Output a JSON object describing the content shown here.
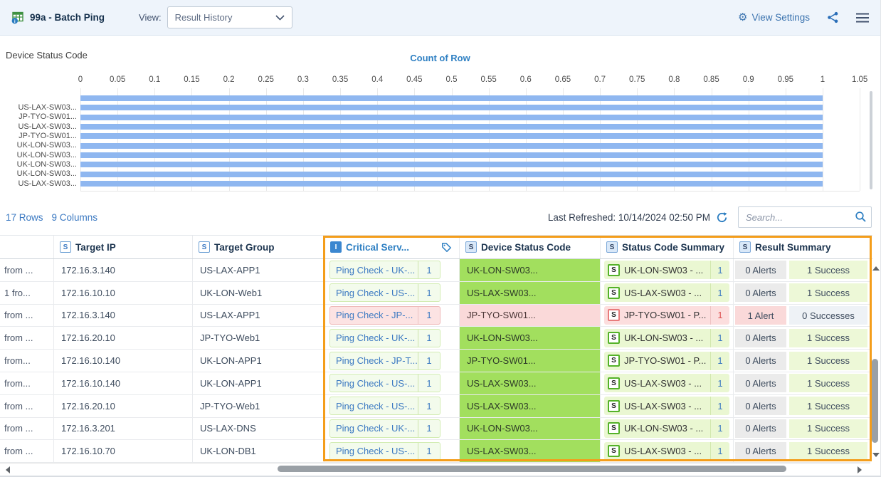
{
  "topbar": {
    "title": "99a - Batch Ping",
    "view_label": "View:",
    "view_value": "Result History",
    "view_settings_label": "View Settings"
  },
  "chart_data": {
    "type": "bar",
    "orientation": "horizontal",
    "title": "Device Status Code",
    "series_label": "Count of Row",
    "xlabel": "Count of Row",
    "xlim": [
      0,
      1.05
    ],
    "x_ticks": [
      "0",
      "0.05",
      "0.1",
      "0.15",
      "0.2",
      "0.25",
      "0.3",
      "0.35",
      "0.4",
      "0.45",
      "0.5",
      "0.55",
      "0.6",
      "0.65",
      "0.7",
      "0.75",
      "0.8",
      "0.85",
      "0.9",
      "0.95",
      "1",
      "1.05"
    ],
    "categories": [
      "",
      "US-LAX-SW03...",
      "JP-TYO-SW01...",
      "US-LAX-SW03...",
      "JP-TYO-SW01...",
      "UK-LON-SW03...",
      "UK-LON-SW03...",
      "UK-LON-SW03...",
      "UK-LON-SW03...",
      "US-LAX-SW03..."
    ],
    "values": [
      1,
      1,
      1,
      1,
      1,
      1,
      1,
      1,
      1,
      1
    ],
    "bar_color": "#8fb7f0",
    "grid": true,
    "note_total_rows": 17
  },
  "meta": {
    "rows_info": "17 Rows",
    "cols_info": "9 Columns",
    "last_refreshed": "Last Refreshed: 10/14/2024 02:50 PM",
    "search_placeholder": "Search..."
  },
  "table": {
    "headers": [
      {
        "label": "",
        "icon": ""
      },
      {
        "label": "Target IP",
        "icon": "S"
      },
      {
        "label": "Target Group",
        "icon": "S"
      },
      {
        "label": "Critical Serv...",
        "icon": "I",
        "tag": true
      },
      {
        "label": "Device Status Code",
        "icon": "S2"
      },
      {
        "label": "Status Code Summary",
        "icon": "S2"
      },
      {
        "label": "Result Summary",
        "icon": "S2"
      }
    ],
    "rows": [
      {
        "first": "from ...",
        "ip": "172.16.3.140",
        "group": "US-LAX-APP1",
        "critical": "Ping Check - UK-...",
        "critical_count": "1",
        "device": "UK-LON-SW03...",
        "summary": "UK-LON-SW03 - ...",
        "summary_count": "1",
        "alerts": "0 Alerts",
        "successes": "1 Success",
        "state": "ok"
      },
      {
        "first": "1 fro...",
        "ip": "172.16.10.10",
        "group": "UK-LON-Web1",
        "critical": "Ping Check - US-...",
        "critical_count": "1",
        "device": "US-LAX-SW03...",
        "summary": "US-LAX-SW03 - ...",
        "summary_count": "1",
        "alerts": "0 Alerts",
        "successes": "1 Success",
        "state": "ok"
      },
      {
        "first": "from ...",
        "ip": "172.16.3.140",
        "group": "US-LAX-APP1",
        "critical": "Ping Check - JP-...",
        "critical_count": "1",
        "device": "JP-TYO-SW01...",
        "summary": "JP-TYO-SW01 - P...",
        "summary_count": "1",
        "alerts": "1 Alert",
        "successes": "0 Successes",
        "state": "alert"
      },
      {
        "first": "from ...",
        "ip": "172.16.20.10",
        "group": "JP-TYO-Web1",
        "critical": "Ping Check - UK-...",
        "critical_count": "1",
        "device": "UK-LON-SW03...",
        "summary": "UK-LON-SW03 - ...",
        "summary_count": "1",
        "alerts": "0 Alerts",
        "successes": "1 Success",
        "state": "ok"
      },
      {
        "first": "from...",
        "ip": "172.16.10.140",
        "group": "UK-LON-APP1",
        "critical": "Ping Check - JP-T...",
        "critical_count": "1",
        "device": "JP-TYO-SW01...",
        "summary": "JP-TYO-SW01 - P...",
        "summary_count": "1",
        "alerts": "0 Alerts",
        "successes": "1 Success",
        "state": "ok"
      },
      {
        "first": "from...",
        "ip": "172.16.10.140",
        "group": "UK-LON-APP1",
        "critical": "Ping Check - US-...",
        "critical_count": "1",
        "device": "US-LAX-SW03...",
        "summary": "US-LAX-SW03 - ...",
        "summary_count": "1",
        "alerts": "0 Alerts",
        "successes": "1 Success",
        "state": "ok"
      },
      {
        "first": "from ...",
        "ip": "172.16.20.10",
        "group": "JP-TYO-Web1",
        "critical": "Ping Check - US-...",
        "critical_count": "1",
        "device": "US-LAX-SW03...",
        "summary": "US-LAX-SW03 - ...",
        "summary_count": "1",
        "alerts": "0 Alerts",
        "successes": "1 Success",
        "state": "ok"
      },
      {
        "first": "from ...",
        "ip": "172.16.3.201",
        "group": "US-LAX-DNS",
        "critical": "Ping Check - UK-...",
        "critical_count": "1",
        "device": "UK-LON-SW03...",
        "summary": "UK-LON-SW03 - ...",
        "summary_count": "1",
        "alerts": "0 Alerts",
        "successes": "1 Success",
        "state": "ok"
      },
      {
        "first": "from ...",
        "ip": "172.16.10.70",
        "group": "UK-LON-DB1",
        "critical": "Ping Check - US-...",
        "critical_count": "1",
        "device": "US-LAX-SW03...",
        "summary": "US-LAX-SW03 - ...",
        "summary_count": "1",
        "alerts": "0 Alerts",
        "successes": "1 Success",
        "state": "ok"
      }
    ]
  },
  "colors": {
    "accent_blue": "#3b79c2",
    "link_blue": "#2f80c3",
    "bar_blue": "#8fb7f0",
    "ok_green_cell": "#a2df5e",
    "ok_green_badge": "#eaf7d2",
    "alert_pink": "#fad9d9",
    "highlight_orange": "#f49d1a",
    "topbar_bg": "#eef4fb"
  }
}
